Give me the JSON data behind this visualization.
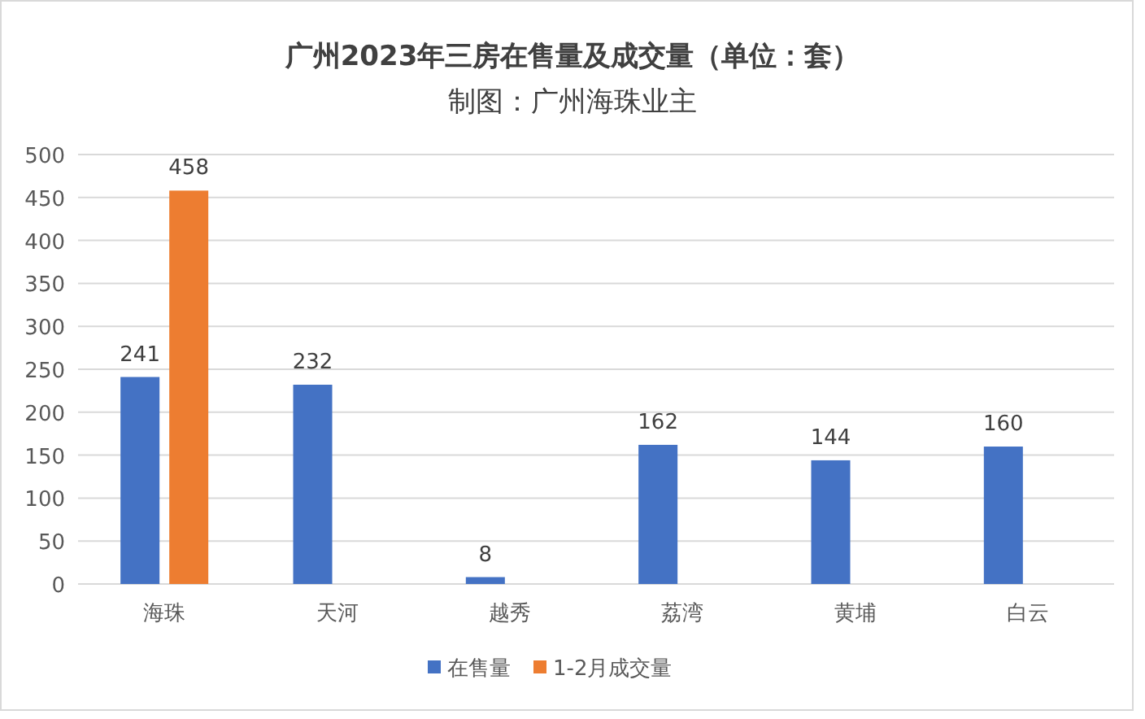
{
  "chart_data": {
    "type": "bar",
    "title": "广州2023年三房在售量及成交量（单位：套）",
    "subtitle": "制图：广州海珠业主",
    "categories": [
      "海珠",
      "天河",
      "越秀",
      "荔湾",
      "黄埔",
      "白云"
    ],
    "series": [
      {
        "name": "在售量",
        "color": "#4472c4",
        "values": [
          241,
          232,
          8,
          162,
          144,
          160
        ]
      },
      {
        "name": "1-2月成交量",
        "color": "#ed7d31",
        "values": [
          458,
          null,
          null,
          null,
          null,
          null
        ]
      }
    ],
    "ylim": [
      0,
      500
    ],
    "yticks": [
      0,
      50,
      100,
      150,
      200,
      250,
      300,
      350,
      400,
      450,
      500
    ],
    "grid": "y",
    "legend": "bottom",
    "data_labels": true
  }
}
